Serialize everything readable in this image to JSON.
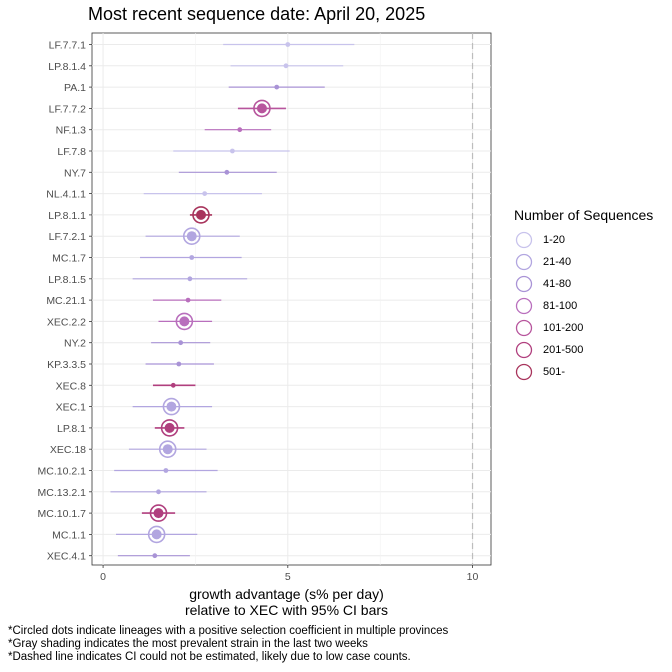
{
  "title": "Most recent sequence date: April 20, 2025",
  "xlabel_line1": "growth advantage (s% per day)",
  "xlabel_line2": "relative to  XEC  with 95% CI bars",
  "footnotes": [
    "*Circled dots indicate lineages with a positive selection coefficient in multiple provinces",
    "*Gray shading indicates the most prevalent strain in the last two weeks",
    "*Dashed line indicates CI could not be estimated, likely due to low case counts."
  ],
  "legend": {
    "title": "Number of Sequences",
    "items": [
      {
        "label": "1-20",
        "color": "#c8c3ec"
      },
      {
        "label": "21-40",
        "color": "#b2a6e0"
      },
      {
        "label": "41-80",
        "color": "#a993d6"
      },
      {
        "label": "81-100",
        "color": "#b96fbd"
      },
      {
        "label": "101-200",
        "color": "#b7559d"
      },
      {
        "label": "201-500",
        "color": "#b03f7e"
      },
      {
        "label": "501-",
        "color": "#a8345c"
      }
    ]
  },
  "chart_data": {
    "type": "scatter",
    "title": "Most recent sequence date: April 20, 2025",
    "xlabel": "growth advantage (s% per day) relative to  XEC  with 95% CI bars",
    "ylabel": "",
    "xlim": [
      -0.3,
      10.5
    ],
    "xticks": [
      0,
      5,
      10
    ],
    "reference_line_x": 10,
    "grid": true,
    "legend_position": "right",
    "points": [
      {
        "lineage": "LF.7.7.1",
        "value": 5.0,
        "ci": [
          3.25,
          6.8
        ],
        "bin": 0,
        "circled": false
      },
      {
        "lineage": "LP.8.1.4",
        "value": 4.95,
        "ci": [
          3.45,
          6.5
        ],
        "bin": 0,
        "circled": false
      },
      {
        "lineage": "PA.1",
        "value": 4.7,
        "ci": [
          3.4,
          6.0
        ],
        "bin": 2,
        "circled": false
      },
      {
        "lineage": "LF.7.7.2",
        "value": 4.3,
        "ci": [
          3.65,
          4.95
        ],
        "bin": 4,
        "circled": true
      },
      {
        "lineage": "NF.1.3",
        "value": 3.7,
        "ci": [
          2.75,
          4.55
        ],
        "bin": 3,
        "circled": false
      },
      {
        "lineage": "LF.7.8",
        "value": 3.5,
        "ci": [
          1.9,
          5.05
        ],
        "bin": 0,
        "circled": false
      },
      {
        "lineage": "NY.7",
        "value": 3.35,
        "ci": [
          2.05,
          4.7
        ],
        "bin": 2,
        "circled": false
      },
      {
        "lineage": "NL.4.1.1",
        "value": 2.75,
        "ci": [
          1.1,
          4.3
        ],
        "bin": 0,
        "circled": false
      },
      {
        "lineage": "LP.8.1.1",
        "value": 2.65,
        "ci": [
          2.35,
          2.95
        ],
        "bin": 6,
        "circled": true
      },
      {
        "lineage": "LF.7.2.1",
        "value": 2.4,
        "ci": [
          1.15,
          3.7
        ],
        "bin": 1,
        "circled": true
      },
      {
        "lineage": "MC.1.7",
        "value": 2.4,
        "ci": [
          1.0,
          3.75
        ],
        "bin": 1,
        "circled": false
      },
      {
        "lineage": "LP.8.1.5",
        "value": 2.35,
        "ci": [
          0.8,
          3.9
        ],
        "bin": 1,
        "circled": false
      },
      {
        "lineage": "MC.21.1",
        "value": 2.3,
        "ci": [
          1.35,
          3.2
        ],
        "bin": 3,
        "circled": false
      },
      {
        "lineage": "XEC.2.2",
        "value": 2.2,
        "ci": [
          1.5,
          2.95
        ],
        "bin": 3,
        "circled": true
      },
      {
        "lineage": "NY.2",
        "value": 2.1,
        "ci": [
          1.3,
          2.9
        ],
        "bin": 2,
        "circled": false
      },
      {
        "lineage": "KP.3.3.5",
        "value": 2.05,
        "ci": [
          1.15,
          3.0
        ],
        "bin": 2,
        "circled": false
      },
      {
        "lineage": "XEC.8",
        "value": 1.9,
        "ci": [
          1.35,
          2.5
        ],
        "bin": 5,
        "circled": false
      },
      {
        "lineage": "XEC.1",
        "value": 1.85,
        "ci": [
          0.8,
          2.95
        ],
        "bin": 1,
        "circled": true
      },
      {
        "lineage": "LP.8.1",
        "value": 1.8,
        "ci": [
          1.4,
          2.2
        ],
        "bin": 5,
        "circled": true
      },
      {
        "lineage": "XEC.18",
        "value": 1.75,
        "ci": [
          0.7,
          2.8
        ],
        "bin": 1,
        "circled": true
      },
      {
        "lineage": "MC.10.2.1",
        "value": 1.7,
        "ci": [
          0.3,
          3.1
        ],
        "bin": 1,
        "circled": false
      },
      {
        "lineage": "MC.13.2.1",
        "value": 1.5,
        "ci": [
          0.2,
          2.8
        ],
        "bin": 1,
        "circled": false
      },
      {
        "lineage": "MC.10.1.7",
        "value": 1.5,
        "ci": [
          1.05,
          1.95
        ],
        "bin": 5,
        "circled": true
      },
      {
        "lineage": "MC.1.1",
        "value": 1.45,
        "ci": [
          0.35,
          2.55
        ],
        "bin": 1,
        "circled": true
      },
      {
        "lineage": "XEC.4.1",
        "value": 1.4,
        "ci": [
          0.4,
          2.35
        ],
        "bin": 2,
        "circled": false
      }
    ]
  }
}
